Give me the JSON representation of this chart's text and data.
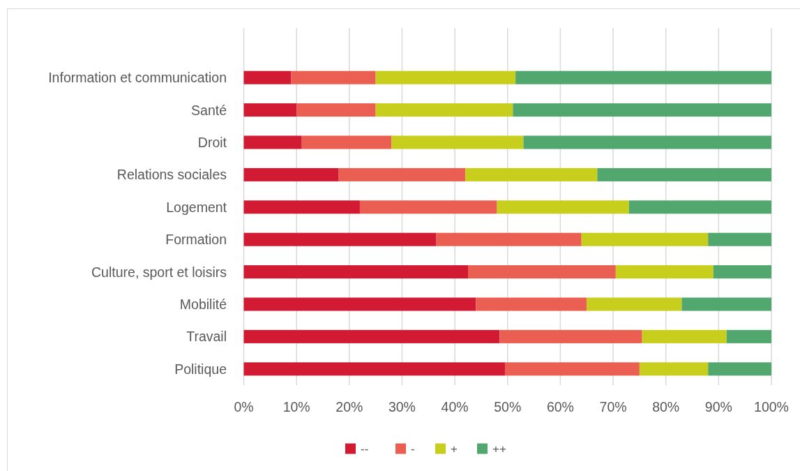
{
  "chart_data": {
    "type": "bar",
    "orientation": "horizontal",
    "stacked": true,
    "categories": [
      "Information et communication",
      "Santé",
      "Droit",
      "Relations sociales",
      "Logement",
      "Formation",
      "Culture, sport et loisirs",
      "Mobilité",
      "Travail",
      "Politique"
    ],
    "series": [
      {
        "name": "--",
        "color": "#d21a32",
        "values": [
          9,
          10,
          11,
          18,
          22,
          36.5,
          42.5,
          44,
          48.5,
          49.5
        ]
      },
      {
        "name": "-",
        "color": "#eb5e52",
        "values": [
          16,
          15,
          17,
          24,
          26,
          27.5,
          28,
          21,
          27,
          25.5
        ]
      },
      {
        "name": "+",
        "color": "#c8ce1c",
        "values": [
          26.5,
          26,
          25,
          25,
          25,
          24,
          18.5,
          18,
          16,
          13
        ]
      },
      {
        "name": "++",
        "color": "#51a76e",
        "values": [
          48.5,
          49,
          47,
          33,
          27,
          12,
          11,
          17,
          8.5,
          12
        ]
      }
    ],
    "xlim": [
      0,
      100
    ],
    "xticks": [
      {
        "value": 0,
        "label": "0%"
      },
      {
        "value": 10,
        "label": "10%"
      },
      {
        "value": 20,
        "label": "20%"
      },
      {
        "value": 30,
        "label": "30%"
      },
      {
        "value": 40,
        "label": "40%"
      },
      {
        "value": 50,
        "label": "50%"
      },
      {
        "value": 60,
        "label": "60%"
      },
      {
        "value": 70,
        "label": "70%"
      },
      {
        "value": 80,
        "label": "80%"
      },
      {
        "value": 90,
        "label": "90%"
      },
      {
        "value": 100,
        "label": "100%"
      }
    ],
    "grid": "x",
    "legend": "bottom"
  }
}
